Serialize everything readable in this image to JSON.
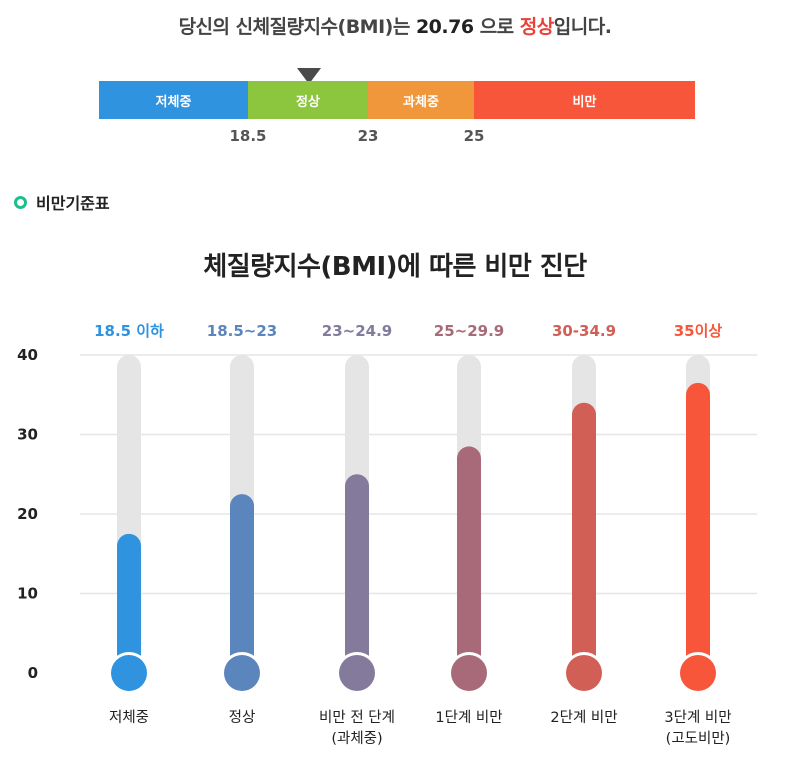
{
  "result": {
    "prefix": "당신의 신체질량지수(BMI)는",
    "bmi": "20.76",
    "middle": "으로",
    "status": "정상",
    "suffix": "입니다."
  },
  "scale": {
    "segments": [
      "저체중",
      "정상",
      "과체중",
      "비만"
    ],
    "thresholds": [
      "18.5",
      "23",
      "25"
    ]
  },
  "section": {
    "title": "비만기준표"
  },
  "chart_data": {
    "type": "bar",
    "title": "체질량지수(BMI)에 따른 비만 진단",
    "categories": [
      [
        "저체중"
      ],
      [
        "정상"
      ],
      [
        "비만 전 단계",
        "(과체중)"
      ],
      [
        "1단계 비만"
      ],
      [
        "2단계 비만"
      ],
      [
        "3단계 비만",
        "(고도비만)"
      ]
    ],
    "ranges": [
      "18.5 이하",
      "18.5~23",
      "23~24.9",
      "25~29.9",
      "30-34.9",
      "35이상"
    ],
    "values": [
      17.5,
      22.5,
      25,
      28.5,
      34,
      36.5
    ],
    "colors": [
      "#2f93df",
      "#5b85bd",
      "#837a9c",
      "#a86a78",
      "#d15f56",
      "#f7563a"
    ],
    "ylim": [
      0,
      40
    ],
    "yticks": [
      0,
      10,
      20,
      30,
      40
    ]
  }
}
